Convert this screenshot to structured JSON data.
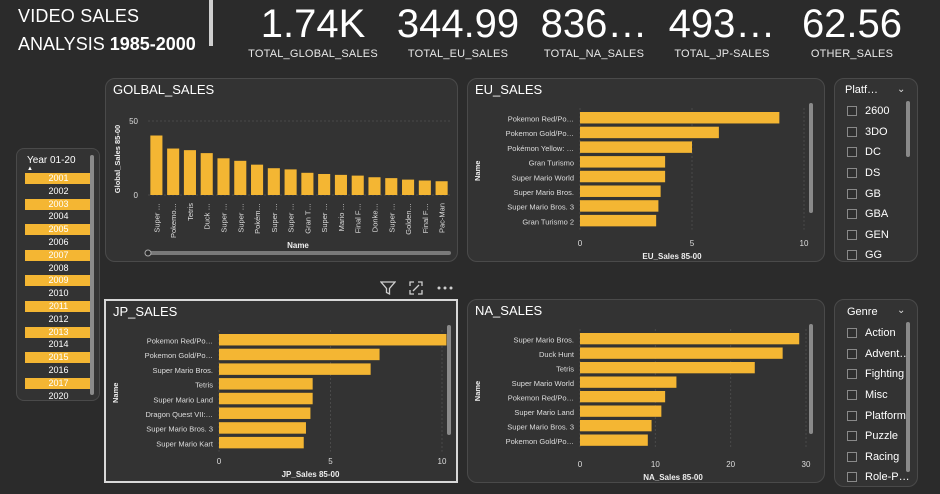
{
  "title": {
    "line1": "VIDEO SALES",
    "line2_plain": "ANALYSIS ",
    "line2_bold": "1985-2000"
  },
  "kpis": [
    {
      "value": "1.74K",
      "label": "TOTAL_GLOBAL_SALES"
    },
    {
      "value": "344.99",
      "label": "TOTAL_EU_SALES"
    },
    {
      "value": "836…",
      "label": "TOTAL_NA_SALES"
    },
    {
      "value": "493…",
      "label": "TOTAL_JP-SALES"
    },
    {
      "value": "62.56",
      "label": "OTHER_SALES"
    }
  ],
  "colors": {
    "bar": "#f4b633",
    "background": "#2b2b2b",
    "panel": "#333333"
  },
  "year_slicer": {
    "title": "Year 01-20",
    "years": [
      "2001",
      "2002",
      "2003",
      "2004",
      "2005",
      "2006",
      "2007",
      "2008",
      "2009",
      "2010",
      "2011",
      "2012",
      "2013",
      "2014",
      "2015",
      "2016",
      "2017",
      "2020"
    ],
    "selected": [
      "2001",
      "2003",
      "2005",
      "2007",
      "2009",
      "2011",
      "2013",
      "2015",
      "2017"
    ]
  },
  "platform_slicer": {
    "title": "Platf…",
    "items": [
      "2600",
      "3DO",
      "DC",
      "DS",
      "GB",
      "GBA",
      "GEN",
      "GG"
    ]
  },
  "genre_slicer": {
    "title": "Genre",
    "items": [
      "Action",
      "Advent…",
      "Fighting",
      "Misc",
      "Platform",
      "Puzzle",
      "Racing",
      "Role-P…"
    ]
  },
  "toolbar": {
    "filter_icon": "filter-icon",
    "focus_icon": "focus-mode-icon",
    "more_icon": "more-options-icon"
  },
  "chart_data": [
    {
      "type": "bar",
      "title": "GOLBAL_SALES",
      "xlabel": "Name",
      "ylabel": "Global_Sales 85-00",
      "ylim": [
        0,
        50
      ],
      "yticks": [
        "0",
        "50"
      ],
      "categories": [
        "Super …",
        "Pokemo…",
        "Tetris",
        "Duck …",
        "Super …",
        "Super …",
        "Pokém…",
        "Super …",
        "Super …",
        "Gran T…",
        "Super …",
        "Mario …",
        "Final F…",
        "Donke…",
        "Super …",
        "Golden…",
        "Final F…",
        "Pac-Man"
      ],
      "values": [
        40.2,
        31.4,
        30.3,
        28.3,
        24.8,
        23.1,
        20.5,
        18.1,
        17.3,
        15.0,
        14.2,
        13.6,
        13.1,
        12.0,
        11.4,
        10.4,
        9.8,
        9.3
      ]
    },
    {
      "type": "bar",
      "orientation": "horizontal",
      "title": "EU_SALES",
      "xlabel": "EU_Sales 85-00",
      "ylabel": "Name",
      "xlim": [
        0,
        10
      ],
      "xticks": [
        "0",
        "5",
        "10"
      ],
      "categories": [
        "Pokemon Red/Po…",
        "Pokemon Gold/Po…",
        "Pokémon Yellow: …",
        "Gran Turismo",
        "Super Mario World",
        "Super Mario Bros.",
        "Super Mario Bros. 3",
        "Gran Turismo 2"
      ],
      "values": [
        8.9,
        6.2,
        5.0,
        3.8,
        3.8,
        3.6,
        3.5,
        3.4
      ]
    },
    {
      "type": "bar",
      "orientation": "horizontal",
      "title": "JP_SALES",
      "xlabel": "JP_Sales 85-00",
      "ylabel": "Name",
      "xlim": [
        0,
        10
      ],
      "xticks": [
        "0",
        "5",
        "10"
      ],
      "categories": [
        "Pokemon Red/Po…",
        "Pokemon Gold/Po…",
        "Super Mario Bros.",
        "Tetris",
        "Super Mario Land",
        "Dragon Quest VII:…",
        "Super Mario Bros. 3",
        "Super Mario Kart"
      ],
      "values": [
        10.2,
        7.2,
        6.8,
        4.2,
        4.2,
        4.1,
        3.9,
        3.8
      ]
    },
    {
      "type": "bar",
      "orientation": "horizontal",
      "title": "NA_SALES",
      "xlabel": "NA_Sales 85-00",
      "ylabel": "Name",
      "xlim": [
        0,
        30
      ],
      "xticks": [
        "0",
        "10",
        "20",
        "30"
      ],
      "categories": [
        "Super Mario Bros.",
        "Duck Hunt",
        "Tetris",
        "Super Mario World",
        "Pokemon Red/Po…",
        "Super Mario Land",
        "Super Mario Bros. 3",
        "Pokemon Gold/Po…"
      ],
      "values": [
        29.1,
        26.9,
        23.2,
        12.8,
        11.3,
        10.8,
        9.5,
        9.0
      ]
    }
  ]
}
